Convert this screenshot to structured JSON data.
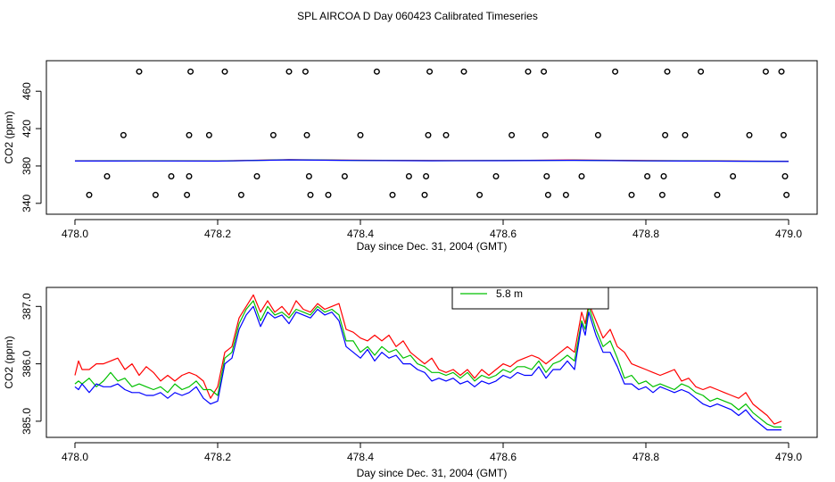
{
  "figure_title": "SPL AIRCOA D  Day 060423  Calibrated Timeseries",
  "colors": {
    "red": "#ff0000",
    "green": "#00c000",
    "blue": "#0000ff",
    "axis": "#000000"
  },
  "chart_data": [
    {
      "type": "scatter",
      "title": "",
      "xlabel": "Day since Dec. 31, 2004 (GMT)",
      "ylabel": "CO2 (ppm)",
      "xlim": [
        478.0,
        479.0
      ],
      "ylim": [
        336,
        486
      ],
      "xticks": [
        478.0,
        478.2,
        478.4,
        478.6,
        478.8,
        479.0
      ],
      "xtick_labels": [
        "478.0",
        "478.2",
        "478.4",
        "478.6",
        "478.8",
        "479.0"
      ],
      "yticks": [
        340,
        380,
        420,
        460
      ],
      "ytick_labels": [
        "340",
        "380",
        "420",
        "460"
      ],
      "points": [
        [
          478.02,
          349
        ],
        [
          478.045,
          369
        ],
        [
          478.068,
          413
        ],
        [
          478.09,
          481
        ],
        [
          478.113,
          349
        ],
        [
          478.135,
          369
        ],
        [
          478.157,
          349
        ],
        [
          478.16,
          369
        ],
        [
          478.16,
          413
        ],
        [
          478.162,
          481
        ],
        [
          478.188,
          413
        ],
        [
          478.21,
          481
        ],
        [
          478.233,
          349
        ],
        [
          478.255,
          369
        ],
        [
          478.278,
          413
        ],
        [
          478.3,
          481
        ],
        [
          478.323,
          481
        ],
        [
          478.325,
          413
        ],
        [
          478.328,
          369
        ],
        [
          478.33,
          349
        ],
        [
          478.355,
          349
        ],
        [
          478.378,
          369
        ],
        [
          478.4,
          413
        ],
        [
          478.423,
          481
        ],
        [
          478.445,
          349
        ],
        [
          478.468,
          369
        ],
        [
          478.49,
          349
        ],
        [
          478.492,
          369
        ],
        [
          478.495,
          413
        ],
        [
          478.497,
          481
        ],
        [
          478.52,
          413
        ],
        [
          478.545,
          481
        ],
        [
          478.567,
          349
        ],
        [
          478.59,
          369
        ],
        [
          478.612,
          413
        ],
        [
          478.635,
          481
        ],
        [
          478.657,
          481
        ],
        [
          478.659,
          413
        ],
        [
          478.661,
          369
        ],
        [
          478.663,
          349
        ],
        [
          478.688,
          349
        ],
        [
          478.71,
          369
        ],
        [
          478.733,
          413
        ],
        [
          478.757,
          481
        ],
        [
          478.78,
          349
        ],
        [
          478.802,
          369
        ],
        [
          478.823,
          349
        ],
        [
          478.825,
          369
        ],
        [
          478.827,
          413
        ],
        [
          478.83,
          481
        ],
        [
          478.855,
          413
        ],
        [
          478.877,
          481
        ],
        [
          478.9,
          349
        ],
        [
          478.922,
          369
        ],
        [
          478.945,
          413
        ],
        [
          478.968,
          481
        ],
        [
          478.99,
          481
        ],
        [
          478.993,
          413
        ],
        [
          478.995,
          369
        ],
        [
          478.997,
          349
        ]
      ],
      "series": [
        {
          "name": "red",
          "color": "#ff0000",
          "x": [
            478.0,
            478.1,
            478.2,
            478.3,
            478.4,
            478.5,
            478.6,
            478.7,
            478.8,
            478.9,
            479.0
          ],
          "values": [
            385.5,
            385.6,
            385.4,
            386.8,
            386.2,
            385.8,
            385.9,
            386.4,
            385.8,
            385.5,
            385.0
          ]
        },
        {
          "name": "green",
          "color": "#00c000",
          "x": [
            478.0,
            478.1,
            478.2,
            478.3,
            478.4,
            478.5,
            478.6,
            478.7,
            478.8,
            478.9,
            479.0
          ],
          "values": [
            385.4,
            385.5,
            385.3,
            386.6,
            386.0,
            385.7,
            385.8,
            386.2,
            385.6,
            385.3,
            384.9
          ]
        },
        {
          "name": "blue",
          "color": "#0000ff",
          "x": [
            478.0,
            478.1,
            478.2,
            478.3,
            478.4,
            478.5,
            478.6,
            478.7,
            478.8,
            478.9,
            479.0
          ],
          "values": [
            385.3,
            385.4,
            385.2,
            386.5,
            385.9,
            385.6,
            385.7,
            386.1,
            385.5,
            385.2,
            384.8
          ]
        }
      ]
    },
    {
      "type": "line",
      "title": "",
      "xlabel": "Day since Dec. 31, 2004 (GMT)",
      "ylabel": "CO2 (ppm)",
      "xlim": [
        478.0,
        479.0
      ],
      "ylim": [
        384.75,
        387.3
      ],
      "xticks": [
        478.0,
        478.2,
        478.4,
        478.6,
        478.8,
        479.0
      ],
      "xtick_labels": [
        "478.0",
        "478.2",
        "478.4",
        "478.6",
        "478.8",
        "479.0"
      ],
      "yticks": [
        385.0,
        386.0,
        387.0
      ],
      "ytick_labels": [
        "385.0",
        "386.0",
        "387.0"
      ],
      "legend": {
        "placement": "top-right",
        "entries": [
          {
            "label": "5.8 m",
            "color": "#00c000"
          }
        ]
      },
      "series": [
        {
          "name": "red",
          "color": "#ff0000",
          "x": [
            478.0,
            478.005,
            478.01,
            478.02,
            478.03,
            478.04,
            478.05,
            478.06,
            478.07,
            478.08,
            478.09,
            478.1,
            478.11,
            478.12,
            478.13,
            478.14,
            478.15,
            478.16,
            478.17,
            478.18,
            478.19,
            478.2,
            478.21,
            478.22,
            478.23,
            478.24,
            478.25,
            478.26,
            478.27,
            478.28,
            478.29,
            478.3,
            478.31,
            478.32,
            478.33,
            478.34,
            478.35,
            478.36,
            478.37,
            478.38,
            478.39,
            478.4,
            478.41,
            478.42,
            478.43,
            478.44,
            478.45,
            478.46,
            478.47,
            478.48,
            478.49,
            478.5,
            478.51,
            478.52,
            478.53,
            478.54,
            478.55,
            478.56,
            478.57,
            478.58,
            478.59,
            478.6,
            478.61,
            478.62,
            478.63,
            478.64,
            478.65,
            478.66,
            478.67,
            478.68,
            478.69,
            478.7,
            478.71,
            478.715,
            478.72,
            478.73,
            478.74,
            478.75,
            478.76,
            478.77,
            478.78,
            478.79,
            478.8,
            478.81,
            478.82,
            478.83,
            478.84,
            478.85,
            478.86,
            478.87,
            478.88,
            478.89,
            478.9,
            478.91,
            478.92,
            478.93,
            478.94,
            478.95,
            478.96,
            478.97,
            478.98,
            478.99
          ],
          "values": [
            385.8,
            386.05,
            385.9,
            385.9,
            386.0,
            386.0,
            386.05,
            386.1,
            385.9,
            386.0,
            385.8,
            385.95,
            385.85,
            385.7,
            385.8,
            385.7,
            385.8,
            385.85,
            385.8,
            385.7,
            385.4,
            385.6,
            386.2,
            386.3,
            386.8,
            387.0,
            387.2,
            386.9,
            387.1,
            386.9,
            387.0,
            386.85,
            387.1,
            386.95,
            386.9,
            387.05,
            386.95,
            387.0,
            387.05,
            386.6,
            386.55,
            386.45,
            386.4,
            386.5,
            386.4,
            386.5,
            386.3,
            386.4,
            386.2,
            386.1,
            386.0,
            386.1,
            385.9,
            385.85,
            385.9,
            385.8,
            385.9,
            385.75,
            385.9,
            385.8,
            385.9,
            386.0,
            385.95,
            386.05,
            386.1,
            386.15,
            386.1,
            386.0,
            386.1,
            386.2,
            386.3,
            386.2,
            386.9,
            386.7,
            387.05,
            386.75,
            386.45,
            386.6,
            386.3,
            386.2,
            386.0,
            385.95,
            385.9,
            385.85,
            385.8,
            385.85,
            385.9,
            385.7,
            385.75,
            385.6,
            385.55,
            385.6,
            385.55,
            385.5,
            385.45,
            385.4,
            385.5,
            385.3,
            385.2,
            385.1,
            384.95,
            385.0
          ]
        },
        {
          "name": "green",
          "color": "#00c000",
          "x": [
            478.0,
            478.005,
            478.01,
            478.02,
            478.03,
            478.04,
            478.05,
            478.06,
            478.07,
            478.08,
            478.09,
            478.1,
            478.11,
            478.12,
            478.13,
            478.14,
            478.15,
            478.16,
            478.17,
            478.18,
            478.19,
            478.2,
            478.21,
            478.22,
            478.23,
            478.24,
            478.25,
            478.26,
            478.27,
            478.28,
            478.29,
            478.3,
            478.31,
            478.32,
            478.33,
            478.34,
            478.35,
            478.36,
            478.37,
            478.38,
            478.39,
            478.4,
            478.41,
            478.42,
            478.43,
            478.44,
            478.45,
            478.46,
            478.47,
            478.48,
            478.49,
            478.5,
            478.51,
            478.52,
            478.53,
            478.54,
            478.55,
            478.56,
            478.57,
            478.58,
            478.59,
            478.6,
            478.61,
            478.62,
            478.63,
            478.64,
            478.65,
            478.66,
            478.67,
            478.68,
            478.69,
            478.7,
            478.71,
            478.715,
            478.72,
            478.73,
            478.74,
            478.75,
            478.76,
            478.77,
            478.78,
            478.79,
            478.8,
            478.81,
            478.82,
            478.83,
            478.84,
            478.85,
            478.86,
            478.87,
            478.88,
            478.89,
            478.9,
            478.91,
            478.92,
            478.93,
            478.94,
            478.95,
            478.96,
            478.97,
            478.98,
            478.99
          ],
          "values": [
            385.65,
            385.7,
            385.65,
            385.75,
            385.6,
            385.7,
            385.85,
            385.7,
            385.75,
            385.6,
            385.65,
            385.6,
            385.55,
            385.6,
            385.5,
            385.65,
            385.55,
            385.6,
            385.7,
            385.55,
            385.55,
            385.45,
            386.1,
            386.2,
            386.7,
            386.95,
            387.1,
            386.75,
            387.0,
            386.85,
            386.9,
            386.8,
            386.95,
            386.9,
            386.85,
            387.0,
            386.9,
            386.95,
            386.85,
            386.4,
            386.4,
            386.2,
            386.3,
            386.15,
            386.3,
            386.2,
            386.25,
            386.1,
            386.15,
            386.0,
            385.95,
            385.85,
            385.85,
            385.8,
            385.85,
            385.75,
            385.85,
            385.7,
            385.8,
            385.75,
            385.8,
            385.9,
            385.85,
            385.95,
            385.95,
            385.9,
            386.05,
            385.85,
            386.0,
            386.05,
            386.15,
            386.05,
            386.75,
            386.6,
            387.0,
            386.6,
            386.3,
            386.4,
            386.1,
            385.75,
            385.8,
            385.65,
            385.7,
            385.6,
            385.65,
            385.6,
            385.55,
            385.65,
            385.6,
            385.5,
            385.45,
            385.35,
            385.4,
            385.35,
            385.3,
            385.2,
            385.3,
            385.15,
            385.05,
            384.95,
            384.9,
            384.9
          ]
        },
        {
          "name": "blue",
          "color": "#0000ff",
          "x": [
            478.0,
            478.005,
            478.01,
            478.02,
            478.03,
            478.04,
            478.05,
            478.06,
            478.07,
            478.08,
            478.09,
            478.1,
            478.11,
            478.12,
            478.13,
            478.14,
            478.15,
            478.16,
            478.17,
            478.18,
            478.19,
            478.2,
            478.21,
            478.22,
            478.23,
            478.24,
            478.25,
            478.26,
            478.27,
            478.28,
            478.29,
            478.3,
            478.31,
            478.32,
            478.33,
            478.34,
            478.35,
            478.36,
            478.37,
            478.38,
            478.39,
            478.4,
            478.41,
            478.42,
            478.43,
            478.44,
            478.45,
            478.46,
            478.47,
            478.48,
            478.49,
            478.5,
            478.51,
            478.52,
            478.53,
            478.54,
            478.55,
            478.56,
            478.57,
            478.58,
            478.59,
            478.6,
            478.61,
            478.62,
            478.63,
            478.64,
            478.65,
            478.66,
            478.67,
            478.68,
            478.69,
            478.7,
            478.71,
            478.715,
            478.72,
            478.73,
            478.74,
            478.75,
            478.76,
            478.77,
            478.78,
            478.79,
            478.8,
            478.81,
            478.82,
            478.83,
            478.84,
            478.85,
            478.86,
            478.87,
            478.88,
            478.89,
            478.9,
            478.91,
            478.92,
            478.93,
            478.94,
            478.95,
            478.96,
            478.97,
            478.98,
            478.99
          ],
          "values": [
            385.6,
            385.55,
            385.65,
            385.5,
            385.65,
            385.6,
            385.6,
            385.65,
            385.55,
            385.5,
            385.5,
            385.45,
            385.45,
            385.5,
            385.4,
            385.5,
            385.45,
            385.5,
            385.6,
            385.4,
            385.3,
            385.35,
            386.0,
            386.1,
            386.6,
            386.85,
            387.0,
            386.65,
            386.9,
            386.8,
            386.85,
            386.7,
            386.9,
            386.85,
            386.8,
            386.95,
            386.85,
            386.9,
            386.75,
            386.3,
            386.2,
            386.1,
            386.25,
            386.05,
            386.2,
            386.1,
            386.15,
            386.0,
            386.0,
            385.9,
            385.85,
            385.7,
            385.75,
            385.7,
            385.75,
            385.65,
            385.7,
            385.6,
            385.7,
            385.65,
            385.7,
            385.8,
            385.75,
            385.85,
            385.8,
            385.8,
            385.95,
            385.75,
            385.9,
            385.9,
            386.05,
            385.9,
            386.7,
            386.5,
            386.9,
            386.5,
            386.2,
            386.2,
            385.95,
            385.65,
            385.65,
            385.55,
            385.6,
            385.5,
            385.6,
            385.55,
            385.5,
            385.55,
            385.5,
            385.4,
            385.3,
            385.25,
            385.3,
            385.25,
            385.2,
            385.1,
            385.2,
            385.05,
            384.95,
            384.85,
            384.85,
            384.85
          ]
        }
      ]
    }
  ]
}
